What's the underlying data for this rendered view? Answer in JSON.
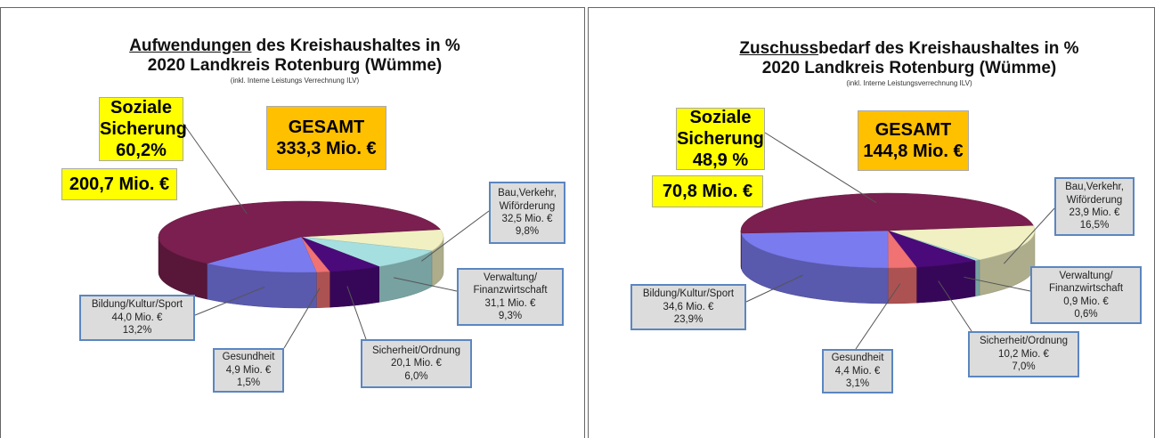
{
  "chart_data": [
    {
      "type": "pie",
      "title_underlined": "Aufwendungen",
      "title_rest": " des Kreishaushaltes in %",
      "title_line2": "2020 Landkreis Rotenburg (Wümme)",
      "subtitle": "(inkl. Interne Leistungs Verrechnung ILV)",
      "total_caption": "GESAMT",
      "total_label": "333,3 Mio. €",
      "categories": [
        "Soziale Sicherung",
        "Bildung/Kultur/Sport",
        "Gesundheit",
        "Sicherheit/Ordnung",
        "Verwaltung/ Finanzwirtschaft",
        "Bau,Verkehr, Wiförderung"
      ],
      "values": [
        60.2,
        13.2,
        1.5,
        6.0,
        9.3,
        9.8
      ],
      "value_labels": [
        "60,2%",
        "13,2%",
        "1,5%",
        "6,0%",
        "9,3%",
        "9,8%"
      ],
      "amount_labels": [
        "200,7 Mio. €",
        "44,0 Mio. €",
        "4,9 Mio. €",
        "20,1 Mio. €",
        "31,1 Mio. €",
        "32,5 Mio. €"
      ],
      "colors": [
        "#7a1f4f",
        "#7b7bf0",
        "#f07272",
        "#4b0a7a",
        "#a6dfe0",
        "#f0f0c2"
      ]
    },
    {
      "type": "pie",
      "title_underlined": "Zuschuss",
      "title_rest": "bedarf des Kreishaushaltes in %",
      "title_line2": "2020 Landkreis Rotenburg (Wümme)",
      "subtitle": "(inkl. Interne Leistungsverrechnung ILV)",
      "total_caption": "GESAMT",
      "total_label": "144,8 Mio. €",
      "categories": [
        "Soziale Sicherung",
        "Bildung/Kultur/Sport",
        "Gesundheit",
        "Sicherheit/Ordnung",
        "Verwaltung/ Finanzwirtschaft",
        "Bau,Verkehr, Wiförderung"
      ],
      "values": [
        48.9,
        23.9,
        3.1,
        7.0,
        0.6,
        16.5
      ],
      "value_labels": [
        "48,9 %",
        "23,9%",
        "3,1%",
        "7,0%",
        "0,6%",
        "16,5%"
      ],
      "amount_labels": [
        "70,8 Mio. €",
        "34,6 Mio. €",
        "4,4 Mio. €",
        "10,2 Mio. €",
        "0,9 Mio. €",
        "23,9 Mio. €"
      ],
      "colors": [
        "#7a1f4f",
        "#7b7bf0",
        "#f07272",
        "#4b0a7a",
        "#a6dfe0",
        "#f0f0c2"
      ]
    }
  ]
}
